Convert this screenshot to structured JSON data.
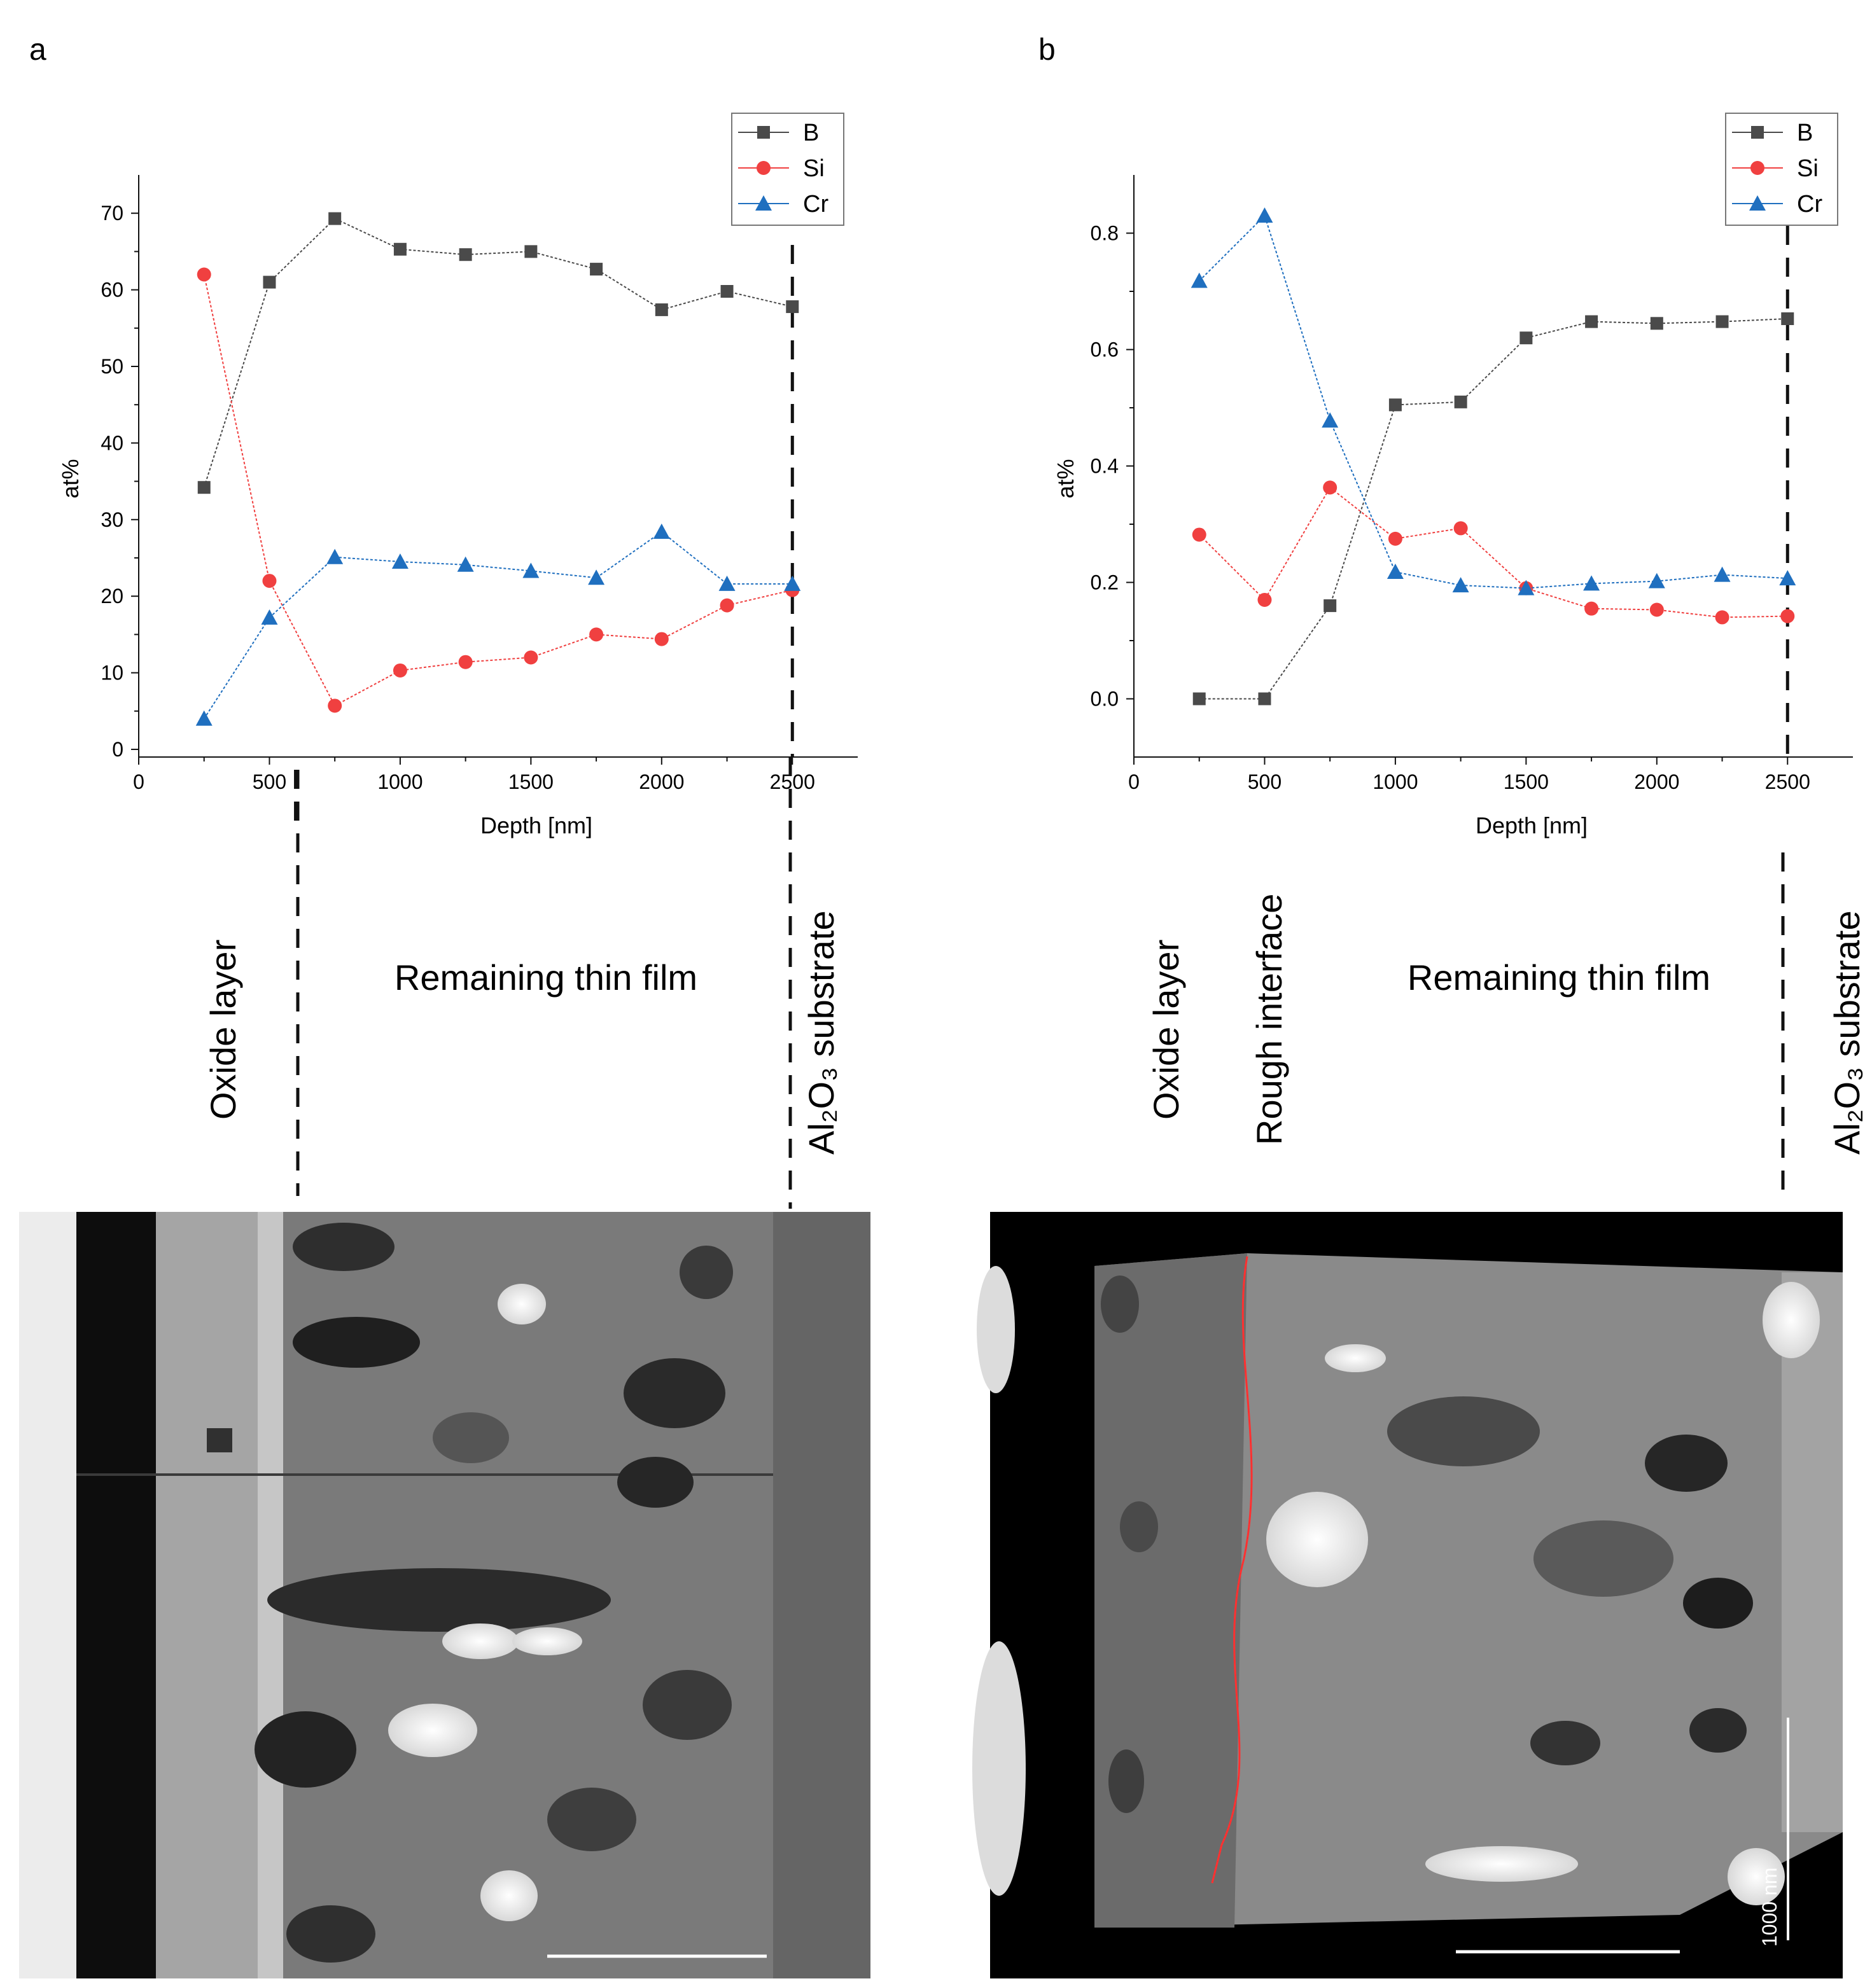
{
  "panels": [
    {
      "letter": "a",
      "legend": [
        {
          "name": "B",
          "color": "#4a4a4a",
          "marker": "square"
        },
        {
          "name": "Si",
          "color": "#f04040",
          "marker": "circle"
        },
        {
          "name": "Cr",
          "color": "#1f6fbf",
          "marker": "triangle"
        }
      ],
      "regions": [
        "Oxide layer",
        "Remaining thin film",
        "Al₂O₃ substrate"
      ],
      "micrograph": {
        "name": "cross-section STEM micrograph (a)"
      }
    },
    {
      "letter": "b",
      "legend": [
        {
          "name": "B",
          "color": "#4a4a4a",
          "marker": "square"
        },
        {
          "name": "Si",
          "color": "#f04040",
          "marker": "circle"
        },
        {
          "name": "Cr",
          "color": "#1f6fbf",
          "marker": "triangle"
        }
      ],
      "regions": [
        "Oxide layer",
        "Rough interface",
        "Remaining thin film",
        "Al₂O₃ substrate"
      ],
      "micrograph": {
        "name": "cross-section STEM micrograph (b)",
        "scalebar_label": "1000 nm"
      }
    }
  ],
  "chart_data": [
    {
      "type": "line",
      "title": "",
      "xlabel": "Depth [nm]",
      "ylabel": "at%",
      "xlim": [
        0,
        2750
      ],
      "ylim": [
        -1,
        75
      ],
      "xticks": [
        0,
        500,
        1000,
        1500,
        2000,
        2500
      ],
      "xtick_labels": [
        "0",
        "500",
        "1000",
        "1500",
        "2000",
        "2500"
      ],
      "yticks": [
        0,
        10,
        20,
        30,
        40,
        50,
        60,
        70
      ],
      "ytick_labels": [
        "0",
        "10",
        "20",
        "30",
        "40",
        "50",
        "60",
        "70"
      ],
      "x": [
        250,
        500,
        750,
        1000,
        1250,
        1500,
        1750,
        2000,
        2250,
        2500
      ],
      "series": [
        {
          "name": "B",
          "color": "#4a4a4a",
          "marker": "square",
          "values": [
            34.2,
            61,
            69.3,
            65.3,
            64.6,
            65,
            62.7,
            57.4,
            59.8,
            57.8
          ]
        },
        {
          "name": "Si",
          "color": "#f04040",
          "marker": "circle",
          "values": [
            62,
            22,
            5.7,
            10.3,
            11.4,
            12,
            15,
            14.4,
            18.8,
            20.8
          ]
        },
        {
          "name": "Cr",
          "color": "#1f6fbf",
          "marker": "triangle",
          "values": [
            4,
            17.2,
            25.1,
            24.5,
            24.1,
            23.3,
            22.4,
            28.4,
            21.6,
            21.6
          ]
        }
      ],
      "vlines_depth": [
        600,
        2500
      ],
      "legend_position": "top-right"
    },
    {
      "type": "line",
      "title": "",
      "xlabel": "Depth [nm]",
      "ylabel": "at%",
      "xlim": [
        0,
        2750
      ],
      "ylim": [
        -0.1,
        0.9
      ],
      "xticks": [
        0,
        500,
        1000,
        1500,
        2000,
        2500
      ],
      "xtick_labels": [
        "0",
        "500",
        "1000",
        "1500",
        "2000",
        "2500"
      ],
      "yticks": [
        0,
        0.2,
        0.4,
        0.6,
        0.8
      ],
      "ytick_labels": [
        "0.0",
        "0.2",
        "0.4",
        "0.6",
        "0.8"
      ],
      "x": [
        250,
        500,
        750,
        1000,
        1250,
        1500,
        1750,
        2000,
        2250,
        2500
      ],
      "series": [
        {
          "name": "B",
          "color": "#4a4a4a",
          "marker": "square",
          "values": [
            0,
            0,
            0.16,
            0.505,
            0.51,
            0.62,
            0.648,
            0.645,
            0.648,
            0.653
          ]
        },
        {
          "name": "Si",
          "color": "#f04040",
          "marker": "circle",
          "values": [
            0.282,
            0.17,
            0.363,
            0.275,
            0.293,
            0.19,
            0.155,
            0.153,
            0.14,
            0.142
          ]
        },
        {
          "name": "Cr",
          "color": "#1f6fbf",
          "marker": "triangle",
          "values": [
            0.718,
            0.83,
            0.478,
            0.218,
            0.195,
            0.19,
            0.198,
            0.202,
            0.213,
            0.207
          ]
        }
      ],
      "vlines_depth": [
        2500
      ],
      "legend_position": "top-right"
    }
  ]
}
